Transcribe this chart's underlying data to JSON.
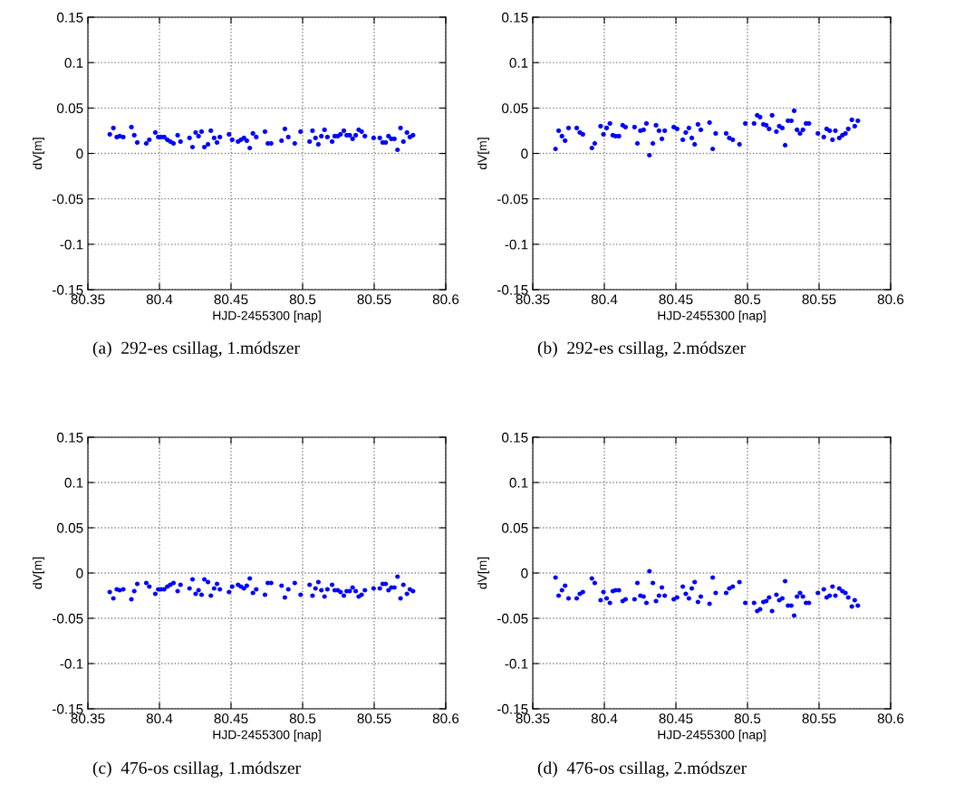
{
  "chart_data": [
    {
      "type": "scatter",
      "xlabel": "HJD-2455300 [nap]",
      "ylabel": "dV[m]",
      "annotations": [
        "(a)  292-es csillag, 1.módszer"
      ],
      "marker": "circle",
      "grid": true,
      "xlim": [
        80.35,
        80.6
      ],
      "xticks": [
        80.35,
        80.4,
        80.45,
        80.5,
        80.55,
        80.6
      ],
      "ylim": [
        -0.15,
        0.15
      ],
      "yticks": [
        -0.15,
        -0.1,
        -0.05,
        0,
        0.05,
        0.1,
        0.15
      ],
      "series": [
        {
          "color": "#0000ff",
          "x": [
            80.3653,
            80.3678,
            80.3702,
            80.3722,
            80.3747,
            80.3804,
            80.3824,
            80.3845,
            80.3908,
            80.3929,
            80.3971,
            80.3992,
            80.4012,
            80.4033,
            80.4055,
            80.4076,
            80.4098,
            80.4127,
            80.4147,
            80.421,
            80.4231,
            80.4253,
            80.4273,
            80.4294,
            80.4314,
            80.4339,
            80.4359,
            80.4382,
            80.4402,
            80.4422,
            80.4486,
            80.4508,
            80.4549,
            80.4569,
            80.459,
            80.461,
            80.4631,
            80.4653,
            80.4676,
            80.4737,
            80.4757,
            80.478,
            80.4853,
            80.4876,
            80.49,
            80.4945,
            80.4986,
            80.5049,
            80.5069,
            80.509,
            80.511,
            80.5131,
            80.5153,
            80.5173,
            80.5206,
            80.5224,
            80.5245,
            80.5265,
            80.5288,
            80.5308,
            80.5329,
            80.5349,
            80.5371,
            80.5392,
            80.5412,
            80.5435,
            80.5496,
            80.5539,
            80.5559,
            80.558,
            80.56,
            80.562,
            80.5641,
            80.5663,
            80.5684,
            80.5704,
            80.5729,
            80.5749,
            80.5771
          ],
          "values": [
            0.021,
            0.028,
            0.018,
            0.019,
            0.018,
            0.029,
            0.02,
            0.012,
            0.011,
            0.015,
            0.023,
            0.018,
            0.018,
            0.018,
            0.015,
            0.013,
            0.011,
            0.02,
            0.013,
            0.017,
            0.007,
            0.023,
            0.019,
            0.024,
            0.007,
            0.01,
            0.025,
            0.017,
            0.012,
            0.018,
            0.021,
            0.015,
            0.013,
            0.015,
            0.017,
            0.014,
            0.006,
            0.022,
            0.018,
            0.024,
            0.011,
            0.011,
            0.014,
            0.027,
            0.018,
            0.011,
            0.024,
            0.013,
            0.025,
            0.017,
            0.01,
            0.019,
            0.026,
            0.018,
            0.013,
            0.019,
            0.019,
            0.021,
            0.025,
            0.02,
            0.02,
            0.016,
            0.02,
            0.026,
            0.024,
            0.019,
            0.017,
            0.017,
            0.012,
            0.012,
            0.019,
            0.016,
            0.016,
            0.004,
            0.028,
            0.013,
            0.023,
            0.018,
            0.02
          ]
        }
      ]
    },
    {
      "type": "scatter",
      "xlabel": "HJD-2455300 [nap]",
      "ylabel": "dV[m]",
      "annotations": [
        "(b)  292-es csillag, 2.módszer"
      ],
      "marker": "circle",
      "grid": true,
      "xlim": [
        80.35,
        80.6
      ],
      "xticks": [
        80.35,
        80.4,
        80.45,
        80.5,
        80.55,
        80.6
      ],
      "ylim": [
        -0.15,
        0.15
      ],
      "yticks": [
        -0.15,
        -0.1,
        -0.05,
        0,
        0.05,
        0.1,
        0.15
      ],
      "series": [
        {
          "color": "#0000ff",
          "x": [
            80.3659,
            80.3681,
            80.3704,
            80.3726,
            80.375,
            80.3807,
            80.3829,
            80.385,
            80.3913,
            80.3933,
            80.3974,
            80.3994,
            80.4016,
            80.4039,
            80.4059,
            80.4079,
            80.4102,
            80.4128,
            80.4148,
            80.4211,
            80.4231,
            80.4252,
            80.4274,
            80.4294,
            80.4315,
            80.4339,
            80.4361,
            80.4382,
            80.4402,
            80.4422,
            80.4485,
            80.4508,
            80.4548,
            80.4569,
            80.4591,
            80.4611,
            80.4631,
            80.4654,
            80.4674,
            80.4735,
            80.4757,
            80.4778,
            80.4851,
            80.4873,
            80.4897,
            80.4944,
            80.4985,
            80.5046,
            80.5068,
            80.5088,
            80.5111,
            80.5131,
            80.5151,
            80.5172,
            80.5202,
            80.5222,
            80.5243,
            80.5263,
            80.5283,
            80.5306,
            80.5326,
            80.5346,
            80.5367,
            80.5387,
            80.5409,
            80.5429,
            80.5492,
            80.5533,
            80.5553,
            80.5574,
            80.5594,
            80.5614,
            80.5641,
            80.5663,
            80.5684,
            80.5704,
            80.5729,
            80.5749,
            80.5771
          ],
          "values": [
            0.005,
            0.025,
            0.019,
            0.014,
            0.028,
            0.028,
            0.023,
            0.021,
            0.006,
            0.011,
            0.03,
            0.021,
            0.028,
            0.033,
            0.02,
            0.019,
            0.019,
            0.031,
            0.029,
            0.029,
            0.011,
            0.025,
            0.026,
            0.033,
            -0.002,
            0.011,
            0.031,
            0.025,
            0.016,
            0.025,
            0.029,
            0.027,
            0.015,
            0.023,
            0.028,
            0.017,
            0.01,
            0.032,
            0.026,
            0.034,
            0.005,
            0.022,
            0.022,
            0.017,
            0.015,
            0.01,
            0.033,
            0.033,
            0.042,
            0.04,
            0.032,
            0.031,
            0.027,
            0.042,
            0.024,
            0.03,
            0.028,
            0.009,
            0.036,
            0.036,
            0.047,
            0.026,
            0.022,
            0.026,
            0.033,
            0.033,
            0.022,
            0.018,
            0.027,
            0.025,
            0.015,
            0.025,
            0.017,
            0.02,
            0.022,
            0.027,
            0.037,
            0.03,
            0.036
          ]
        }
      ]
    },
    {
      "type": "scatter",
      "xlabel": "HJD-2455300 [nap]",
      "ylabel": "dV[m]",
      "annotations": [
        "(c)  476-os csillag, 1.módszer"
      ],
      "marker": "circle",
      "grid": true,
      "xlim": [
        80.35,
        80.6
      ],
      "xticks": [
        80.35,
        80.4,
        80.45,
        80.5,
        80.55,
        80.6
      ],
      "ylim": [
        -0.15,
        0.15
      ],
      "yticks": [
        -0.15,
        -0.1,
        -0.05,
        0,
        0.05,
        0.1,
        0.15
      ],
      "series": [
        {
          "color": "#0000ff",
          "x": [
            80.3653,
            80.3678,
            80.3702,
            80.3722,
            80.3747,
            80.3804,
            80.3824,
            80.3845,
            80.3908,
            80.3929,
            80.3971,
            80.3992,
            80.4012,
            80.4033,
            80.4055,
            80.4076,
            80.4098,
            80.4127,
            80.4147,
            80.421,
            80.4231,
            80.4253,
            80.4273,
            80.4294,
            80.4314,
            80.4339,
            80.4359,
            80.4382,
            80.4402,
            80.4422,
            80.4486,
            80.4508,
            80.4549,
            80.4569,
            80.459,
            80.461,
            80.4631,
            80.4653,
            80.4676,
            80.4737,
            80.4757,
            80.478,
            80.4853,
            80.4876,
            80.49,
            80.4945,
            80.4986,
            80.5049,
            80.5069,
            80.509,
            80.511,
            80.5131,
            80.5153,
            80.5173,
            80.5206,
            80.5224,
            80.5245,
            80.5265,
            80.5288,
            80.5308,
            80.5329,
            80.5349,
            80.5371,
            80.5392,
            80.5412,
            80.5435,
            80.5496,
            80.5539,
            80.5559,
            80.558,
            80.56,
            80.562,
            80.5641,
            80.5663,
            80.5684,
            80.5704,
            80.5729,
            80.5749,
            80.5771
          ],
          "values": [
            -0.021,
            -0.028,
            -0.018,
            -0.019,
            -0.018,
            -0.029,
            -0.02,
            -0.012,
            -0.011,
            -0.015,
            -0.023,
            -0.018,
            -0.018,
            -0.018,
            -0.015,
            -0.013,
            -0.011,
            -0.02,
            -0.013,
            -0.017,
            -0.007,
            -0.023,
            -0.019,
            -0.024,
            -0.007,
            -0.01,
            -0.025,
            -0.017,
            -0.012,
            -0.018,
            -0.021,
            -0.015,
            -0.013,
            -0.015,
            -0.017,
            -0.014,
            -0.006,
            -0.022,
            -0.018,
            -0.024,
            -0.011,
            -0.011,
            -0.014,
            -0.027,
            -0.018,
            -0.011,
            -0.024,
            -0.013,
            -0.025,
            -0.017,
            -0.01,
            -0.019,
            -0.026,
            -0.018,
            -0.013,
            -0.019,
            -0.019,
            -0.021,
            -0.025,
            -0.02,
            -0.02,
            -0.016,
            -0.02,
            -0.026,
            -0.024,
            -0.019,
            -0.017,
            -0.017,
            -0.012,
            -0.012,
            -0.019,
            -0.016,
            -0.016,
            -0.004,
            -0.028,
            -0.013,
            -0.023,
            -0.018,
            -0.02
          ]
        }
      ]
    },
    {
      "type": "scatter",
      "xlabel": "HJD-2455300 [nap]",
      "ylabel": "dV[m]",
      "annotations": [
        "(d)  476-os csillag, 2.módszer"
      ],
      "marker": "circle",
      "grid": true,
      "xlim": [
        80.35,
        80.6
      ],
      "xticks": [
        80.35,
        80.4,
        80.45,
        80.5,
        80.55,
        80.6
      ],
      "ylim": [
        -0.15,
        0.15
      ],
      "yticks": [
        -0.15,
        -0.1,
        -0.05,
        0,
        0.05,
        0.1,
        0.15
      ],
      "series": [
        {
          "color": "#0000ff",
          "x": [
            80.3659,
            80.3681,
            80.3704,
            80.3726,
            80.375,
            80.3807,
            80.3829,
            80.385,
            80.3913,
            80.3933,
            80.3974,
            80.3994,
            80.4016,
            80.4039,
            80.4059,
            80.4079,
            80.4102,
            80.4128,
            80.4148,
            80.4211,
            80.4231,
            80.4252,
            80.4274,
            80.4294,
            80.4315,
            80.4339,
            80.4361,
            80.4382,
            80.4402,
            80.4422,
            80.4485,
            80.4508,
            80.4548,
            80.4569,
            80.4591,
            80.4611,
            80.4631,
            80.4654,
            80.4674,
            80.4735,
            80.4757,
            80.4778,
            80.4851,
            80.4873,
            80.4897,
            80.4944,
            80.4985,
            80.5046,
            80.5068,
            80.5088,
            80.5111,
            80.5131,
            80.5151,
            80.5172,
            80.5202,
            80.5222,
            80.5243,
            80.5263,
            80.5283,
            80.5306,
            80.5326,
            80.5346,
            80.5367,
            80.5387,
            80.5409,
            80.5429,
            80.5492,
            80.5533,
            80.5553,
            80.5574,
            80.5594,
            80.5614,
            80.5641,
            80.5663,
            80.5684,
            80.5704,
            80.5729,
            80.5749,
            80.5771
          ],
          "values": [
            -0.005,
            -0.025,
            -0.019,
            -0.014,
            -0.028,
            -0.028,
            -0.023,
            -0.021,
            -0.006,
            -0.011,
            -0.03,
            -0.021,
            -0.028,
            -0.033,
            -0.02,
            -0.019,
            -0.019,
            -0.031,
            -0.029,
            -0.029,
            -0.011,
            -0.025,
            -0.026,
            -0.033,
            0.002,
            -0.011,
            -0.031,
            -0.025,
            -0.016,
            -0.025,
            -0.029,
            -0.027,
            -0.015,
            -0.023,
            -0.028,
            -0.017,
            -0.01,
            -0.032,
            -0.026,
            -0.034,
            -0.005,
            -0.022,
            -0.022,
            -0.017,
            -0.015,
            -0.01,
            -0.033,
            -0.033,
            -0.042,
            -0.04,
            -0.032,
            -0.031,
            -0.027,
            -0.042,
            -0.024,
            -0.03,
            -0.028,
            -0.009,
            -0.036,
            -0.036,
            -0.047,
            -0.026,
            -0.022,
            -0.026,
            -0.033,
            -0.033,
            -0.022,
            -0.018,
            -0.027,
            -0.025,
            -0.015,
            -0.025,
            -0.017,
            -0.02,
            -0.022,
            -0.027,
            -0.037,
            -0.03,
            -0.036
          ]
        }
      ]
    }
  ]
}
